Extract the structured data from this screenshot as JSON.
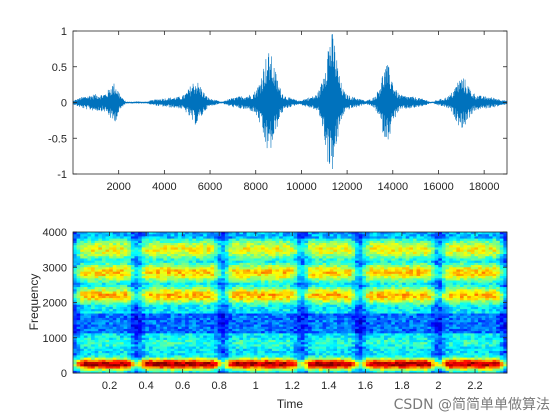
{
  "watermark": "CSDN @简简单单做算法",
  "chart_data": [
    {
      "type": "line",
      "subplot": "waveform",
      "title": "",
      "xlabel": "",
      "ylabel": "",
      "xlim": [
        0,
        19000
      ],
      "ylim": [
        -1,
        1
      ],
      "xticks": [
        2000,
        4000,
        6000,
        8000,
        10000,
        12000,
        14000,
        16000,
        18000
      ],
      "yticks": [
        -1,
        -0.5,
        0,
        0.5,
        1
      ],
      "grid": false,
      "series_color": "#0072BD",
      "segments": [
        {
          "start": 0,
          "end": 2300,
          "peak_at": 1850,
          "peak": 0.38,
          "base": 0.1
        },
        {
          "start": 3300,
          "end": 6400,
          "peak_at": 5400,
          "peak": 0.33,
          "base": 0.06
        },
        {
          "start": 6600,
          "end": 9900,
          "peak_at": 8600,
          "peak": 0.72,
          "base": 0.1
        },
        {
          "start": 9900,
          "end": 12800,
          "peak_at": 11300,
          "peak": 0.98,
          "base": 0.1
        },
        {
          "start": 12800,
          "end": 15600,
          "peak_at": 13700,
          "peak": 0.58,
          "base": 0.08
        },
        {
          "start": 15800,
          "end": 19000,
          "peak_at": 17000,
          "peak": 0.36,
          "base": 0.08
        }
      ]
    },
    {
      "type": "heatmap",
      "subplot": "spectrogram",
      "title": "",
      "xlabel": "Time",
      "ylabel": "Frequency",
      "xlim": [
        0,
        2.375
      ],
      "ylim": [
        0,
        4000
      ],
      "xticks": [
        0.2,
        0.4,
        0.6,
        0.8,
        1,
        1.2,
        1.4,
        1.6,
        1.8,
        2,
        2.2
      ],
      "xtick_labels": [
        "0.2",
        "0.4",
        "0.6",
        "0.8",
        "1",
        "1.2",
        "1.4",
        "1.6",
        "1.8",
        "2",
        "2.2"
      ],
      "yticks": [
        0,
        1000,
        2000,
        3000,
        4000
      ],
      "colormap": "jet",
      "bands_hz": [
        {
          "center": 250,
          "width": 160,
          "level": 0.97
        },
        {
          "center": 2200,
          "width": 240,
          "level": 0.7
        },
        {
          "center": 2850,
          "width": 260,
          "level": 0.68
        },
        {
          "center": 3500,
          "width": 280,
          "level": 0.62
        },
        {
          "center": 850,
          "width": 200,
          "level": 0.42
        }
      ],
      "gaps_time": [
        0.0,
        0.35,
        0.82,
        1.25,
        1.57,
        2.0,
        2.37
      ]
    }
  ]
}
